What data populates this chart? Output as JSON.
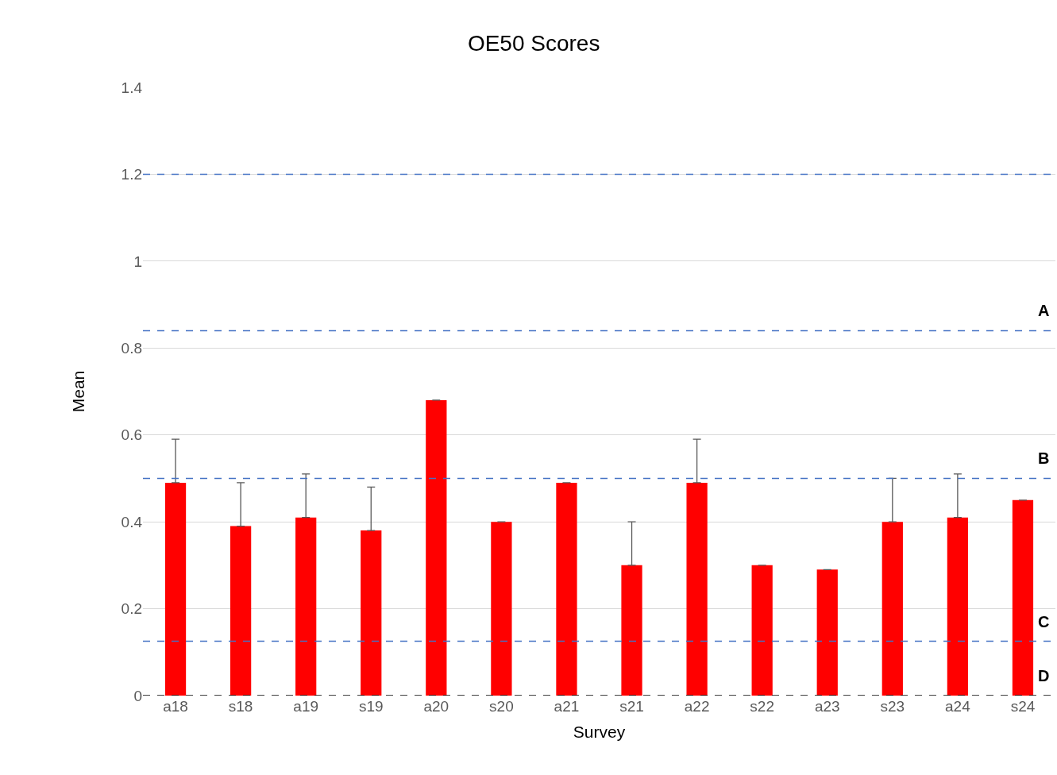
{
  "chart_data": {
    "type": "bar",
    "title": "OE50 Scores",
    "xlabel": "Survey",
    "ylabel": "Mean",
    "categories": [
      "a18",
      "s18",
      "a19",
      "s19",
      "a20",
      "s20",
      "a21",
      "s21",
      "a22",
      "s22",
      "a23",
      "s23",
      "a24",
      "s24"
    ],
    "values": [
      0.49,
      0.39,
      0.41,
      0.38,
      0.68,
      0.4,
      0.49,
      0.3,
      0.49,
      0.3,
      0.29,
      0.4,
      0.41,
      0.45
    ],
    "errors": [
      [
        0.49,
        0.59
      ],
      [
        0.39,
        0.49
      ],
      [
        0.41,
        0.51
      ],
      [
        0.38,
        0.48
      ],
      [
        0.68,
        0.68
      ],
      [
        0.4,
        0.4
      ],
      [
        0.49,
        0.49
      ],
      [
        0.3,
        0.4
      ],
      [
        0.49,
        0.59
      ],
      [
        0.3,
        0.3
      ],
      [
        0.29,
        0.29
      ],
      [
        0.4,
        0.5
      ],
      [
        0.41,
        0.51
      ],
      null
    ],
    "color": "#ff0000",
    "ylim": [
      0,
      1.4
    ],
    "yticks": [
      0,
      0.2,
      0.4,
      0.6,
      0.8,
      1,
      1.2,
      1.4
    ],
    "grid": "y",
    "ref_lines": [
      {
        "axis": "y",
        "value": 1.2,
        "color": "#4472c4",
        "line_style": "dashed"
      },
      {
        "axis": "y",
        "value": 0.84,
        "label": "A",
        "color": "#4472c4",
        "line_style": "dashed"
      },
      {
        "axis": "y",
        "value": 0.5,
        "label": "B",
        "color": "#4472c4",
        "line_style": "dashed"
      },
      {
        "axis": "y",
        "value": 0.125,
        "label": "C",
        "color": "#4472c4",
        "line_style": "dashed"
      },
      {
        "axis": "y",
        "value": 0,
        "label": "D",
        "color": "#000000",
        "line_style": "dashed"
      }
    ]
  }
}
